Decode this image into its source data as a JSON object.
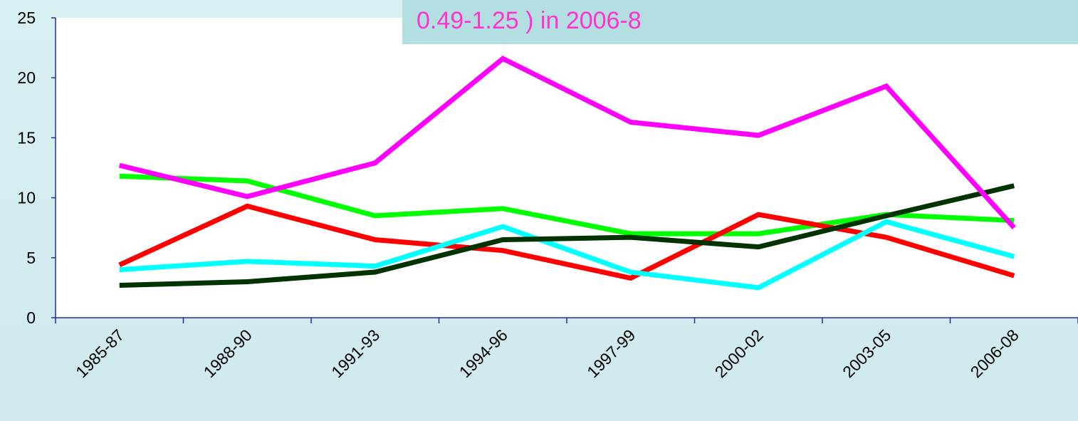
{
  "chart_data": {
    "type": "line",
    "title": "0.49-1.25 ) in 2006-8",
    "categories": [
      "1985-87",
      "1988-90",
      "1991-93",
      "1994-96",
      "1997-99",
      "2000-02",
      "2003-05",
      "2006-08"
    ],
    "series": [
      {
        "color": "#00ff00",
        "values": [
          11.8,
          11.4,
          8.5,
          9.1,
          7.0,
          7.0,
          8.6,
          8.1
        ]
      },
      {
        "color": "#ff0000",
        "values": [
          4.4,
          9.3,
          6.5,
          5.6,
          3.3,
          8.6,
          6.7,
          3.5
        ]
      },
      {
        "color": "#00ffff",
        "values": [
          4.0,
          4.7,
          4.3,
          7.6,
          3.8,
          2.5,
          8.0,
          5.1
        ]
      },
      {
        "color": "#003300",
        "values": [
          2.7,
          3.0,
          3.8,
          6.5,
          6.7,
          5.9,
          8.5,
          11.0
        ]
      },
      {
        "color": "#ff00ff",
        "values": [
          12.7,
          10.1,
          12.9,
          21.6,
          16.3,
          15.2,
          19.3,
          7.5
        ]
      }
    ],
    "ylim": [
      0,
      25
    ],
    "yticks": [
      0,
      5,
      10,
      15,
      20,
      25
    ],
    "grid": false
  }
}
